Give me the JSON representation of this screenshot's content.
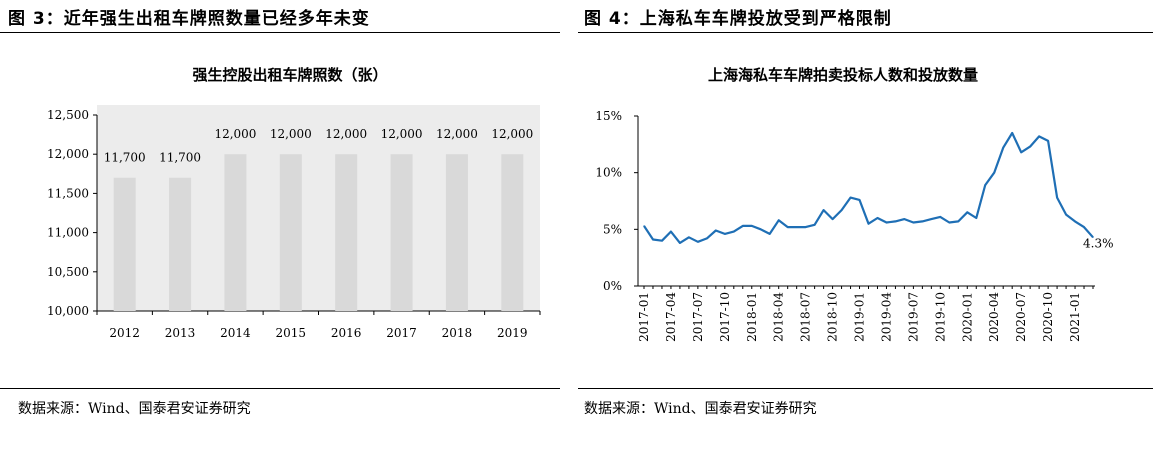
{
  "left_panel": {
    "figure_title": "图 3：近年强生出租车牌照数量已经多年未变",
    "source": "数据来源：Wind、国泰君安证券研究"
  },
  "right_panel": {
    "figure_title": "图 4：上海私车车牌投放受到严格限制",
    "source": "数据来源：Wind、国泰君安证券研究"
  },
  "chart_data": [
    {
      "type": "bar",
      "title": "强生控股出租车牌照数（张）",
      "categories": [
        "2012",
        "2013",
        "2014",
        "2015",
        "2016",
        "2017",
        "2018",
        "2019"
      ],
      "values": [
        11700,
        11700,
        12000,
        12000,
        12000,
        12000,
        12000,
        12000
      ],
      "data_labels": [
        "11,700",
        "11,700",
        "12,000",
        "12,000",
        "12,000",
        "12,000",
        "12,000",
        "12,000"
      ],
      "ylim": [
        10000,
        12500
      ],
      "yticks": [
        "10,000",
        "10,500",
        "11,000",
        "11,500",
        "12,000",
        "12,500"
      ],
      "ytick_values": [
        10000,
        10500,
        11000,
        11500,
        12000,
        12500
      ],
      "grid": false,
      "bar_color": "#d9d9d9",
      "background": "#ececec"
    },
    {
      "type": "line",
      "title": "上海海私车车牌拍卖投标人数和投放数量",
      "x": [
        "2017-01",
        "2017-02",
        "2017-03",
        "2017-04",
        "2017-05",
        "2017-06",
        "2017-07",
        "2017-08",
        "2017-09",
        "2017-10",
        "2017-11",
        "2017-12",
        "2018-01",
        "2018-02",
        "2018-03",
        "2018-04",
        "2018-05",
        "2018-06",
        "2018-07",
        "2018-08",
        "2018-09",
        "2018-10",
        "2018-11",
        "2018-12",
        "2019-01",
        "2019-02",
        "2019-03",
        "2019-04",
        "2019-05",
        "2019-06",
        "2019-07",
        "2019-08",
        "2019-09",
        "2019-10",
        "2019-11",
        "2019-12",
        "2020-01",
        "2020-02",
        "2020-03",
        "2020-04",
        "2020-05",
        "2020-06",
        "2020-07",
        "2020-08",
        "2020-09",
        "2020-10",
        "2020-11",
        "2020-12",
        "2021-01",
        "2021-02",
        "2021-03"
      ],
      "xticks": [
        "2017-01",
        "2017-04",
        "2017-07",
        "2017-10",
        "2018-01",
        "2018-04",
        "2018-07",
        "2018-10",
        "2019-01",
        "2019-04",
        "2019-07",
        "2019-10",
        "2020-01",
        "2020-04",
        "2020-07",
        "2020-10",
        "2021-01"
      ],
      "series": [
        {
          "values": [
            5.3,
            4.1,
            4.0,
            4.8,
            3.8,
            4.3,
            3.9,
            4.2,
            4.9,
            4.6,
            4.8,
            5.3,
            5.3,
            5.0,
            4.6,
            5.8,
            5.2,
            5.2,
            5.2,
            5.4,
            6.7,
            5.9,
            6.7,
            7.8,
            7.6,
            5.5,
            6.0,
            5.6,
            5.7,
            5.9,
            5.6,
            5.7,
            5.9,
            6.1,
            5.6,
            5.7,
            6.5,
            6.0,
            8.9,
            10.0,
            12.2,
            13.5,
            11.8,
            12.3,
            13.2,
            12.8,
            7.8,
            6.3,
            5.7,
            5.2,
            4.3
          ],
          "color": "#1f6fb5"
        }
      ],
      "end_label": "4.3%",
      "ylim": [
        0,
        15
      ],
      "yticks": [
        "0%",
        "5%",
        "10%",
        "15%"
      ],
      "ytick_values": [
        0,
        5,
        10,
        15
      ],
      "grid": false
    }
  ]
}
